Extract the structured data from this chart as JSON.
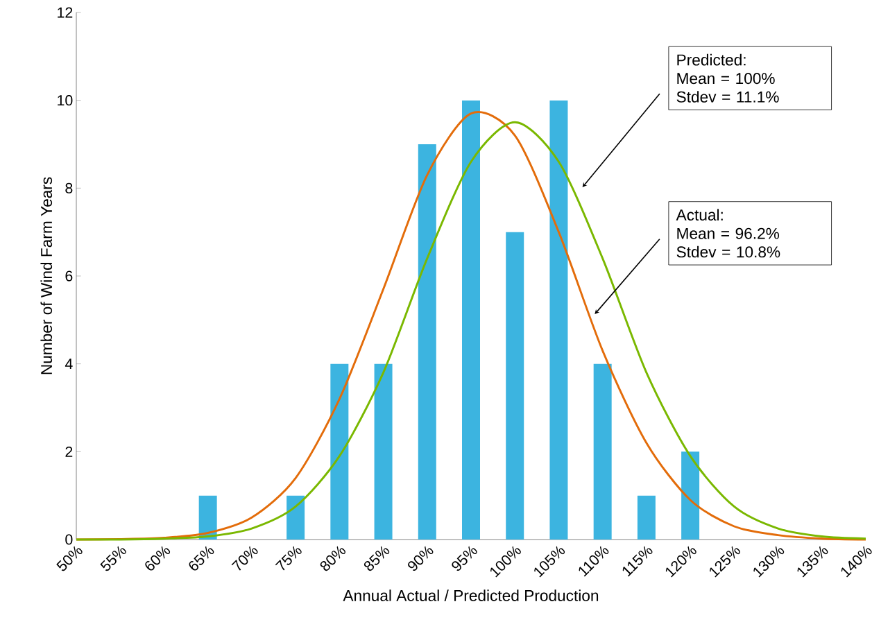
{
  "chart_data": {
    "type": "bar",
    "xlabel": "Annual Actual / Predicted Production",
    "ylabel": "Number of Wind Farm Years",
    "categories": [
      "50%",
      "55%",
      "60%",
      "65%",
      "70%",
      "75%",
      "80%",
      "85%",
      "90%",
      "95%",
      "100%",
      "105%",
      "110%",
      "115%",
      "120%",
      "125%",
      "130%",
      "135%",
      "140%"
    ],
    "series": [
      {
        "color": "#3cb4e0",
        "values": [
          0,
          0,
          0,
          1,
          0,
          1,
          4,
          4,
          9,
          10,
          7,
          10,
          4,
          1,
          2,
          0,
          0,
          0,
          0
        ]
      },
      {
        "type": "line",
        "color": "#e36c0a",
        "values": [
          0,
          0.01,
          0.04,
          0.15,
          0.5,
          1.4,
          3.2,
          5.7,
          8.3,
          9.7,
          9.2,
          7.0,
          4.3,
          2.2,
          0.9,
          0.3,
          0.1,
          0.02,
          0
        ]
      },
      {
        "type": "line",
        "color": "#7ab800",
        "values": [
          0,
          0,
          0.02,
          0.07,
          0.25,
          0.75,
          1.9,
          3.8,
          6.4,
          8.6,
          9.5,
          8.6,
          6.4,
          3.8,
          1.9,
          0.75,
          0.25,
          0.07,
          0.02
        ]
      }
    ],
    "ylim": [
      0,
      12
    ],
    "yticks": [
      0,
      2,
      4,
      6,
      8,
      10,
      12
    ],
    "grid": false,
    "marker": "none",
    "line_style": "solid",
    "annotations": [
      "Predicted:",
      "Mean  = 100%",
      "Stdev =  11.1%",
      "Actual:",
      "Mean  = 96.2%",
      "Stdev = 10.8%"
    ]
  }
}
